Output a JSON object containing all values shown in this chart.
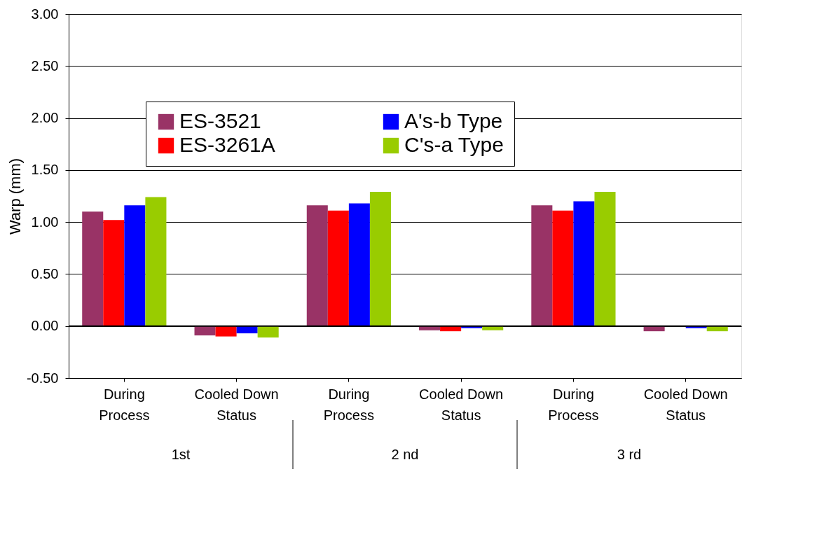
{
  "chart_data": {
    "type": "bar",
    "ylabel": "Warp (mm)",
    "categories": [
      "During\nProcess",
      "Cooled Down\nStatus",
      "During\nProcess",
      "Cooled Down\nStatus",
      "During\nProcess",
      "Cooled Down\nStatus"
    ],
    "annotations": [
      "1st",
      "2 nd",
      "3 rd"
    ],
    "series": [
      {
        "name": "ES-3521",
        "color": "#993366",
        "values": [
          1.1,
          -0.09,
          1.16,
          -0.04,
          1.16,
          -0.05
        ]
      },
      {
        "name": "ES-3261A",
        "color": "#ff0000",
        "values": [
          1.02,
          -0.1,
          1.11,
          -0.05,
          1.11,
          null
        ]
      },
      {
        "name": "A's-b Type",
        "color": "#0000ff",
        "values": [
          1.16,
          -0.07,
          1.18,
          -0.02,
          1.2,
          -0.02
        ]
      },
      {
        "name": "C's-a Type",
        "color": "#99cc00",
        "values": [
          1.24,
          -0.11,
          1.29,
          -0.04,
          1.29,
          -0.05
        ]
      }
    ],
    "ylim": [
      -0.5,
      3.0
    ],
    "yticks": [
      {
        "value": -0.5,
        "label": "-0.50"
      },
      {
        "value": 0,
        "label": "0.00"
      },
      {
        "value": 0.5,
        "label": "0.50"
      },
      {
        "value": 1,
        "label": "1.00"
      },
      {
        "value": 1.5,
        "label": "1.50"
      },
      {
        "value": 2,
        "label": "2.00"
      },
      {
        "value": 2.5,
        "label": "2.50"
      },
      {
        "value": 3,
        "label": "3.00"
      }
    ],
    "grid": "y",
    "legend": "top"
  }
}
